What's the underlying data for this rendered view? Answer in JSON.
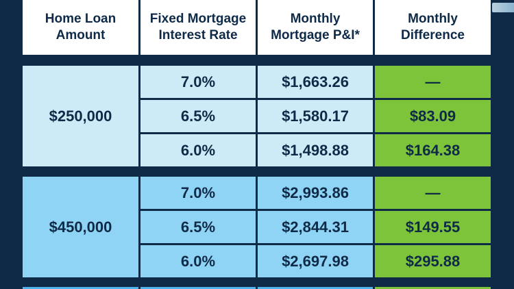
{
  "headers": [
    {
      "line1": "Home Loan",
      "line2": "Amount"
    },
    {
      "line1": "Fixed Mortgage",
      "line2": "Interest Rate"
    },
    {
      "line1": "Monthly",
      "line2": "Mortgage P&I*"
    },
    {
      "line1": "Monthly",
      "line2": "Difference"
    }
  ],
  "groups": [
    {
      "amount": "$250,000",
      "rows": [
        {
          "rate": "7.0%",
          "payment": "$1,663.26",
          "difference": "—"
        },
        {
          "rate": "6.5%",
          "payment": "$1,580.17",
          "difference": "$83.09"
        },
        {
          "rate": "6.0%",
          "payment": "$1,498.88",
          "difference": "$164.38"
        }
      ]
    },
    {
      "amount": "$450,000",
      "rows": [
        {
          "rate": "7.0%",
          "payment": "$2,993.86",
          "difference": "—"
        },
        {
          "rate": "6.5%",
          "payment": "$2,844.31",
          "difference": "$149.55"
        },
        {
          "rate": "6.0%",
          "payment": "$2,697.98",
          "difference": "$295.88"
        }
      ]
    }
  ],
  "colors": {
    "background": "#0e2a47",
    "group1": "#cdebf7",
    "group2": "#8fd4f5",
    "group3": "#4fb2ea",
    "difference": "#7dc43a",
    "text": "#0e2a47"
  }
}
